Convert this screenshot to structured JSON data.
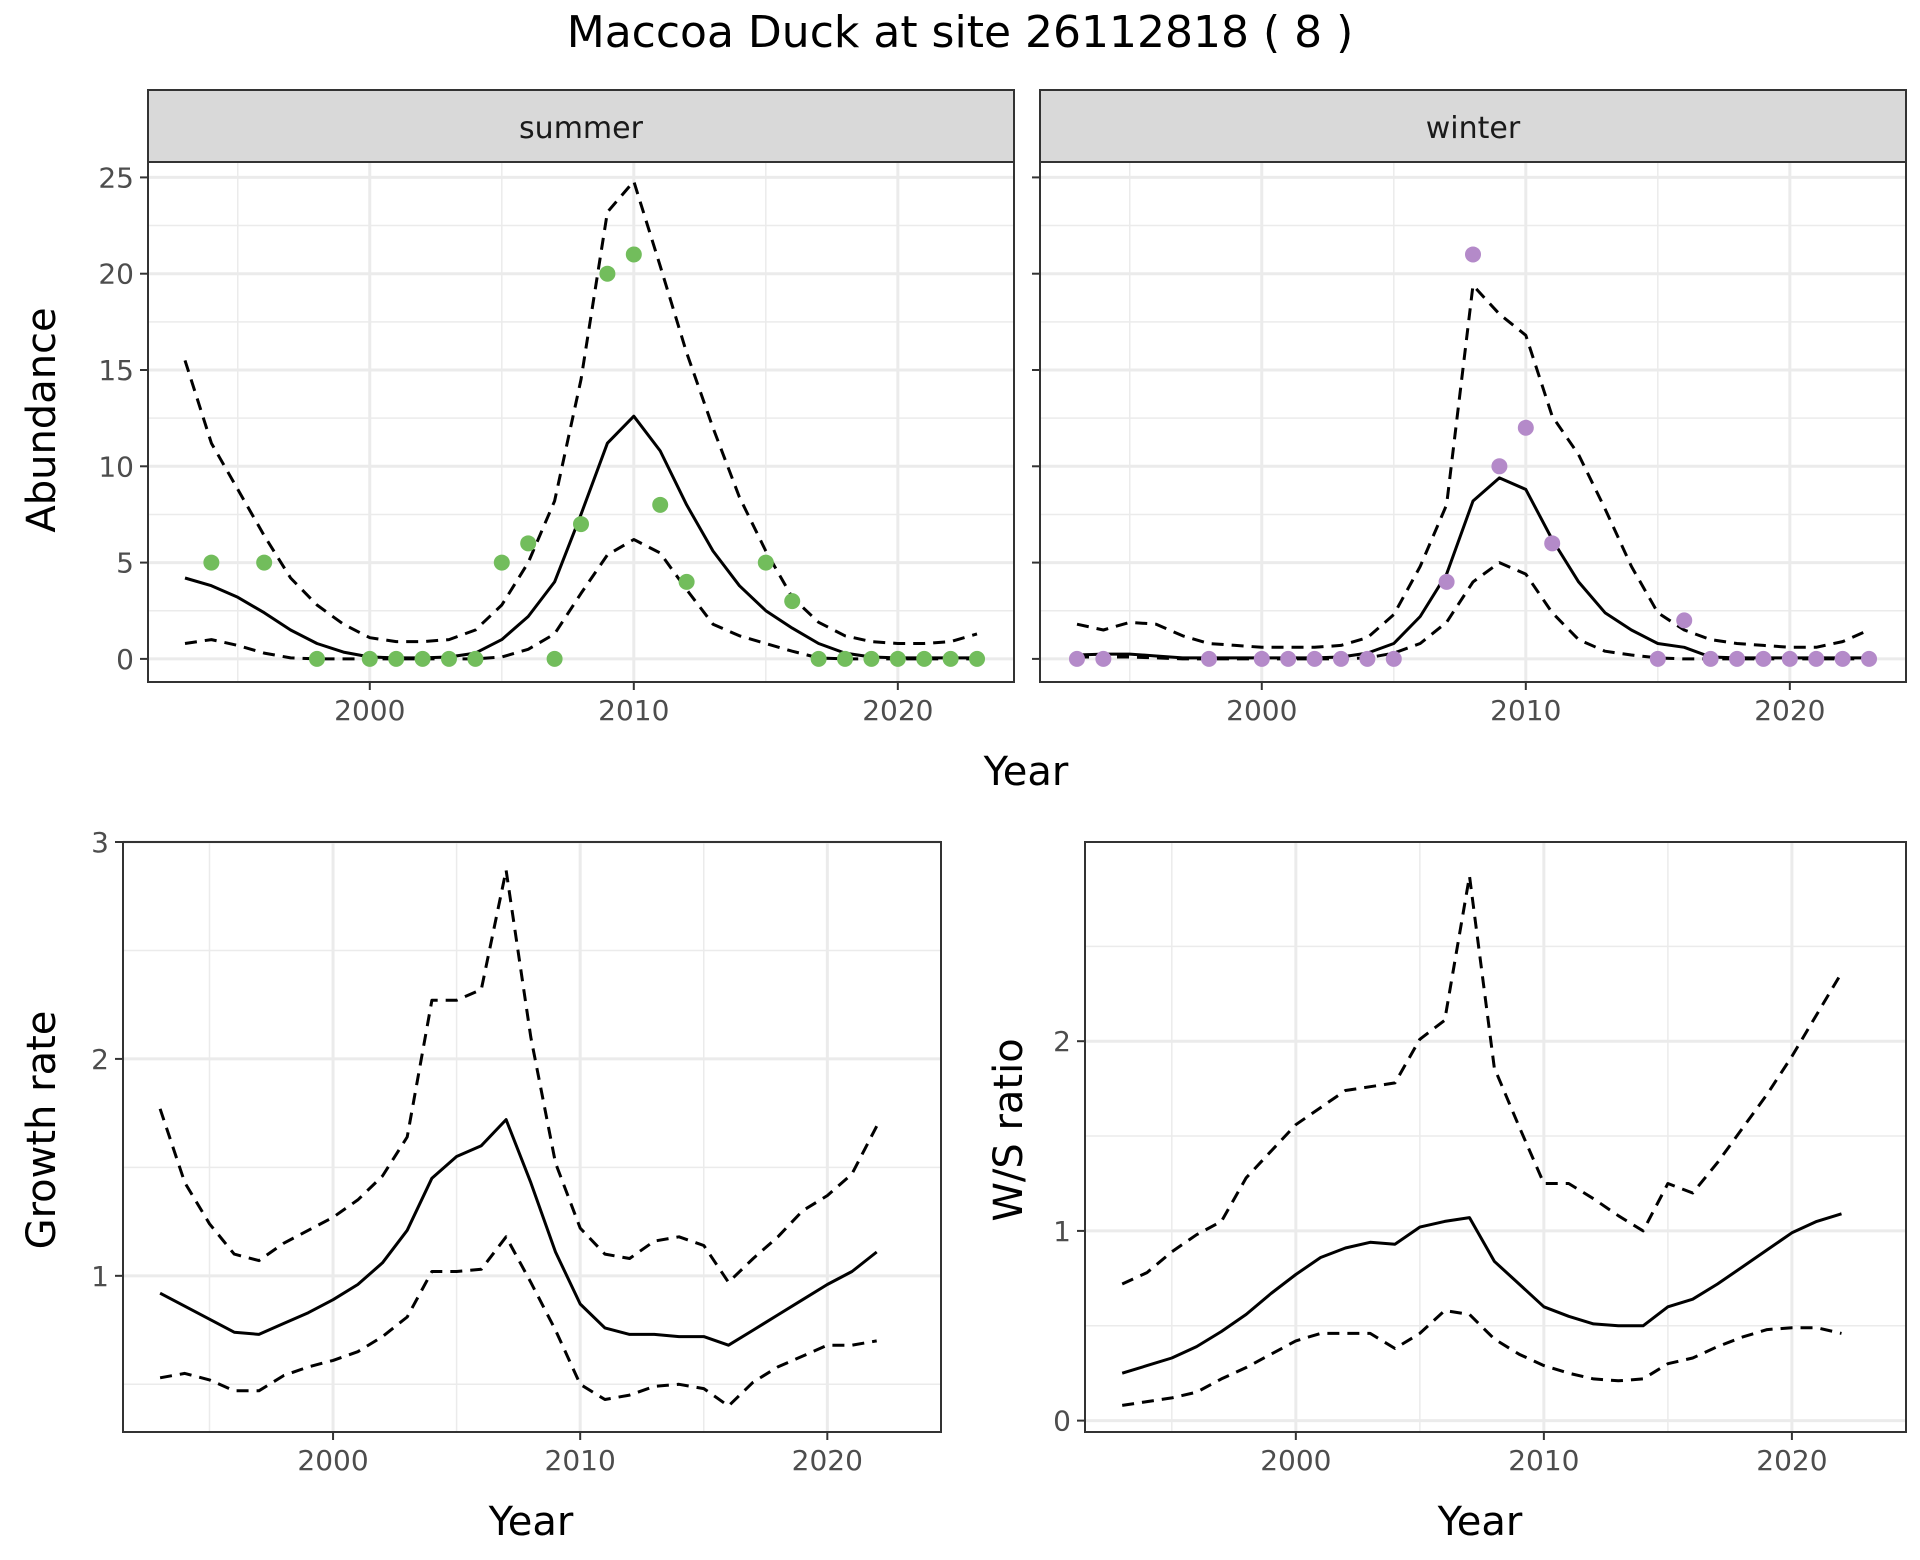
{
  "title": "Maccoa Duck at site 26112818 ( 8 )",
  "colors": {
    "summer_points": "#72bd5c",
    "winter_points": "#b48ac9",
    "lines": "#000000",
    "strip_bg": "#d9d9d9",
    "grid": "#ebebeb"
  },
  "chart_data": [
    {
      "type": "line",
      "panel": "summer",
      "xlabel": "Year",
      "ylabel": "Abundance",
      "xlim": [
        1991.6,
        2024.4
      ],
      "ylim": [
        -1.2,
        25.8
      ],
      "xticks": [
        2000,
        2010,
        2020
      ],
      "yticks": [
        0,
        5,
        10,
        15,
        20,
        25
      ],
      "x": [
        1993,
        1994,
        1995,
        1996,
        1997,
        1998,
        1999,
        2000,
        2001,
        2002,
        2003,
        2004,
        2005,
        2006,
        2007,
        2008,
        2009,
        2010,
        2011,
        2012,
        2013,
        2014,
        2015,
        2016,
        2017,
        2018,
        2019,
        2020,
        2021,
        2022,
        2023
      ],
      "series": [
        {
          "role": "fit",
          "dash": "solid",
          "values": [
            4.2,
            3.8,
            3.2,
            2.4,
            1.5,
            0.8,
            0.35,
            0.1,
            0.05,
            0.05,
            0.1,
            0.3,
            1.0,
            2.2,
            4.0,
            7.5,
            11.2,
            12.6,
            10.8,
            8.0,
            5.6,
            3.8,
            2.5,
            1.6,
            0.8,
            0.3,
            0.1,
            0.05,
            0.05,
            0.05,
            0.05
          ]
        },
        {
          "role": "upper",
          "dash": "dashed",
          "values": [
            15.5,
            11.2,
            8.8,
            6.4,
            4.2,
            2.8,
            1.8,
            1.1,
            0.9,
            0.9,
            1.0,
            1.5,
            2.8,
            5.0,
            8.2,
            14.5,
            23.2,
            24.8,
            20.4,
            15.9,
            12.0,
            8.4,
            5.6,
            3.2,
            1.9,
            1.2,
            0.9,
            0.8,
            0.8,
            0.9,
            1.3
          ]
        },
        {
          "role": "lower",
          "dash": "dashed",
          "values": [
            0.8,
            1.0,
            0.7,
            0.3,
            0.05,
            0.0,
            0.0,
            0.0,
            0.0,
            0.0,
            0.0,
            0.0,
            0.1,
            0.5,
            1.3,
            3.4,
            5.4,
            6.2,
            5.5,
            3.6,
            1.8,
            1.2,
            0.8,
            0.4,
            0.05,
            0.0,
            0.0,
            0.0,
            0.0,
            0.0,
            0.0
          ]
        }
      ],
      "points": {
        "x": [
          1994,
          1996,
          1998,
          2000,
          2001,
          2002,
          2003,
          2004,
          2005,
          2006,
          2007,
          2008,
          2009,
          2010,
          2011,
          2012,
          2015,
          2016,
          2017,
          2018,
          2019,
          2020,
          2021,
          2022,
          2023
        ],
        "y": [
          5,
          5,
          0,
          0,
          0,
          0,
          0,
          0,
          5,
          6,
          0,
          7,
          20,
          21,
          8,
          4,
          5,
          3,
          0,
          0,
          0,
          0,
          0,
          0,
          0
        ]
      }
    },
    {
      "type": "line",
      "panel": "winter",
      "xlabel": "Year",
      "ylabel": "Abundance",
      "xlim": [
        1991.6,
        2024.4
      ],
      "ylim": [
        -1.2,
        25.8
      ],
      "xticks": [
        2000,
        2010,
        2020
      ],
      "yticks": [
        0,
        5,
        10,
        15,
        20,
        25
      ],
      "x": [
        1993,
        1994,
        1995,
        1996,
        1997,
        1998,
        1999,
        2000,
        2001,
        2002,
        2003,
        2004,
        2005,
        2006,
        2007,
        2008,
        2009,
        2010,
        2011,
        2012,
        2013,
        2014,
        2015,
        2016,
        2017,
        2018,
        2019,
        2020,
        2021,
        2022,
        2023
      ],
      "series": [
        {
          "role": "fit",
          "dash": "solid",
          "values": [
            0.2,
            0.25,
            0.25,
            0.15,
            0.05,
            0.05,
            0.05,
            0.05,
            0.05,
            0.05,
            0.1,
            0.3,
            0.8,
            2.2,
            4.4,
            8.2,
            9.4,
            8.8,
            6.2,
            4.0,
            2.4,
            1.5,
            0.8,
            0.6,
            0.1,
            0.05,
            0.05,
            0.05,
            0.05,
            0.05,
            0.05
          ]
        },
        {
          "role": "upper",
          "dash": "dashed",
          "values": [
            1.8,
            1.5,
            1.9,
            1.8,
            1.2,
            0.8,
            0.7,
            0.6,
            0.6,
            0.6,
            0.7,
            1.1,
            2.3,
            4.8,
            8.0,
            19.4,
            17.9,
            16.8,
            12.6,
            10.6,
            7.8,
            4.8,
            2.4,
            1.5,
            1.0,
            0.8,
            0.7,
            0.6,
            0.6,
            0.9,
            1.5
          ]
        },
        {
          "role": "lower",
          "dash": "dashed",
          "values": [
            0.1,
            0.1,
            0.1,
            0.05,
            0.0,
            0.0,
            0.0,
            0.0,
            0.0,
            0.0,
            0.0,
            0.05,
            0.3,
            0.8,
            1.9,
            4.0,
            5.0,
            4.4,
            2.4,
            1.0,
            0.4,
            0.2,
            0.05,
            0.0,
            0.0,
            0.0,
            0.0,
            0.0,
            0.0,
            0.0,
            0.0
          ]
        }
      ],
      "points": {
        "x": [
          1993,
          1994,
          1998,
          2000,
          2001,
          2002,
          2003,
          2004,
          2005,
          2007,
          2008,
          2009,
          2010,
          2011,
          2015,
          2016,
          2017,
          2018,
          2019,
          2020,
          2021,
          2022,
          2023
        ],
        "y": [
          0,
          0,
          0,
          0,
          0,
          0,
          0,
          0,
          0,
          4,
          21,
          10,
          12,
          6,
          0,
          2,
          0,
          0,
          0,
          0,
          0,
          0,
          0
        ]
      }
    },
    {
      "type": "line",
      "panel": "growth",
      "xlabel": "Year",
      "ylabel": "Growth rate",
      "xlim": [
        1991.5,
        2024.6
      ],
      "ylim": [
        0.28,
        3.0
      ],
      "xticks": [
        2000,
        2010,
        2020
      ],
      "yticks": [
        1,
        2,
        3
      ],
      "x": [
        1993,
        1994,
        1995,
        1996,
        1997,
        1998,
        1999,
        2000,
        2001,
        2002,
        2003,
        2004,
        2005,
        2006,
        2007,
        2008,
        2009,
        2010,
        2011,
        2012,
        2013,
        2014,
        2015,
        2016,
        2017,
        2018,
        2019,
        2020,
        2021,
        2022
      ],
      "series": [
        {
          "role": "fit",
          "dash": "solid",
          "values": [
            0.92,
            0.86,
            0.8,
            0.74,
            0.73,
            0.78,
            0.83,
            0.89,
            0.96,
            1.06,
            1.21,
            1.45,
            1.55,
            1.6,
            1.72,
            1.43,
            1.11,
            0.87,
            0.76,
            0.73,
            0.73,
            0.72,
            0.72,
            0.68,
            0.75,
            0.82,
            0.89,
            0.96,
            1.02,
            1.11
          ]
        },
        {
          "role": "upper",
          "dash": "dashed",
          "values": [
            1.77,
            1.43,
            1.24,
            1.1,
            1.07,
            1.15,
            1.21,
            1.27,
            1.35,
            1.46,
            1.64,
            2.27,
            2.27,
            2.32,
            2.87,
            2.1,
            1.52,
            1.22,
            1.1,
            1.08,
            1.16,
            1.18,
            1.14,
            0.97,
            1.08,
            1.18,
            1.3,
            1.37,
            1.47,
            1.69
          ]
        },
        {
          "role": "lower",
          "dash": "dashed",
          "values": [
            0.53,
            0.55,
            0.52,
            0.47,
            0.47,
            0.54,
            0.58,
            0.61,
            0.65,
            0.72,
            0.81,
            1.02,
            1.02,
            1.03,
            1.18,
            0.97,
            0.75,
            0.5,
            0.43,
            0.45,
            0.49,
            0.5,
            0.48,
            0.4,
            0.51,
            0.58,
            0.63,
            0.68,
            0.68,
            0.7
          ]
        }
      ]
    },
    {
      "type": "line",
      "panel": "ratio",
      "xlabel": "Year",
      "ylabel": "W/S ratio",
      "xlim": [
        1991.5,
        2024.6
      ],
      "ylim": [
        -0.06,
        3.05
      ],
      "xticks": [
        2000,
        2010,
        2020
      ],
      "yticks": [
        0,
        1,
        2
      ],
      "x": [
        1993,
        1994,
        1995,
        1996,
        1997,
        1998,
        1999,
        2000,
        2001,
        2002,
        2003,
        2004,
        2005,
        2006,
        2007,
        2008,
        2009,
        2010,
        2011,
        2012,
        2013,
        2014,
        2015,
        2016,
        2017,
        2018,
        2019,
        2020,
        2021,
        2022
      ],
      "series": [
        {
          "role": "fit",
          "dash": "solid",
          "values": [
            0.25,
            0.29,
            0.33,
            0.39,
            0.47,
            0.56,
            0.67,
            0.77,
            0.86,
            0.91,
            0.94,
            0.93,
            1.02,
            1.05,
            1.07,
            0.84,
            0.72,
            0.6,
            0.55,
            0.51,
            0.5,
            0.5,
            0.6,
            0.64,
            0.72,
            0.81,
            0.9,
            0.99,
            1.05,
            1.09
          ]
        },
        {
          "role": "upper",
          "dash": "dashed",
          "values": [
            0.72,
            0.78,
            0.89,
            0.98,
            1.05,
            1.28,
            1.42,
            1.56,
            1.65,
            1.74,
            1.76,
            1.78,
            2.01,
            2.11,
            2.87,
            1.86,
            1.55,
            1.25,
            1.25,
            1.17,
            1.08,
            1.0,
            1.25,
            1.2,
            1.36,
            1.54,
            1.72,
            1.92,
            2.14,
            2.36
          ]
        },
        {
          "role": "lower",
          "dash": "dashed",
          "values": [
            0.08,
            0.1,
            0.12,
            0.15,
            0.22,
            0.28,
            0.35,
            0.42,
            0.46,
            0.46,
            0.46,
            0.38,
            0.46,
            0.58,
            0.56,
            0.43,
            0.35,
            0.29,
            0.25,
            0.22,
            0.21,
            0.22,
            0.3,
            0.33,
            0.39,
            0.44,
            0.48,
            0.49,
            0.49,
            0.46
          ]
        }
      ]
    }
  ]
}
